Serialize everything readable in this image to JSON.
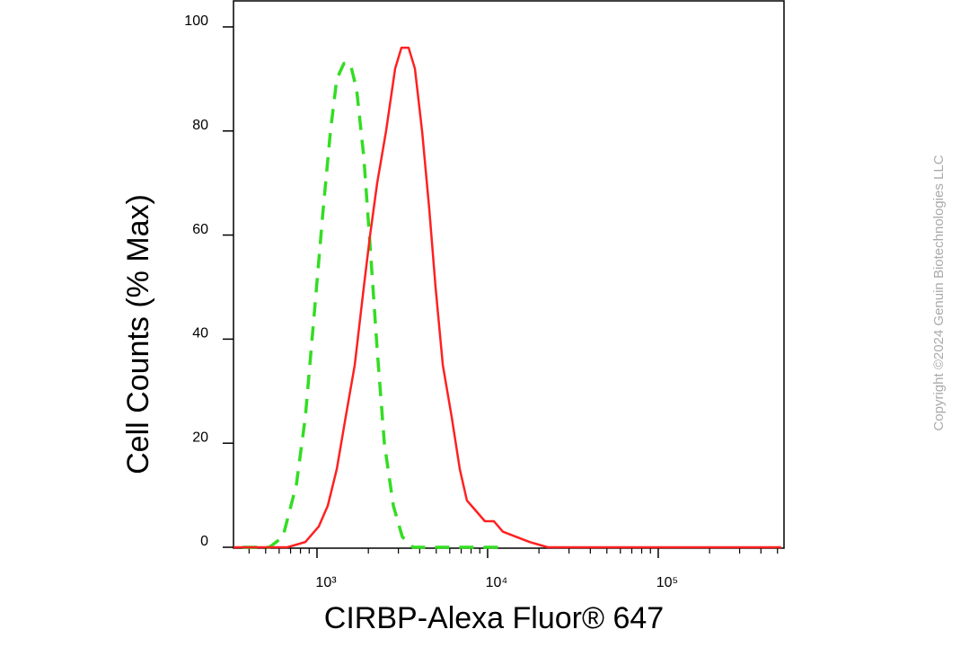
{
  "chart_data": {
    "type": "line",
    "x_label": "CIRBP-Alexa Fluor® 647",
    "y_label": "Cell Counts (% Max)",
    "copyright": "Copyright ©2024 Genuin Biotechnologies LLC",
    "xscale": "log",
    "xlim": [
      324,
      546000
    ],
    "ylim": [
      0,
      105
    ],
    "xticks": [
      {
        "value": 1000,
        "label": "10³"
      },
      {
        "value": 10000,
        "label": "10⁴"
      },
      {
        "value": 100000,
        "label": "10⁵"
      }
    ],
    "xticks_minor": [
      400,
      500,
      600,
      700,
      800,
      900,
      2000,
      3000,
      4000,
      5000,
      6000,
      7000,
      8000,
      9000,
      20000,
      30000,
      40000,
      50000,
      60000,
      70000,
      80000,
      90000,
      200000,
      300000,
      400000,
      500000
    ],
    "yticks": [
      0,
      20,
      40,
      60,
      80,
      100
    ],
    "series": [
      {
        "color": "#33dd22",
        "dash": true,
        "x": [
          366,
          526,
          631,
          757,
          854,
          964,
          1088,
          1200,
          1306,
          1438,
          1567,
          1706,
          1880,
          2046,
          2253,
          2482,
          2801,
          3162,
          3656,
          5943,
          12270
        ],
        "values": [
          0,
          0,
          2,
          12,
          25,
          45,
          65,
          80,
          90,
          93,
          93,
          88,
          75,
          58,
          38,
          20,
          8,
          2,
          0,
          0,
          0
        ]
      },
      {
        "color": "#ff2020",
        "dash": false,
        "x": [
          324,
          670,
          854,
          1025,
          1157,
          1306,
          1473,
          1664,
          1880,
          2046,
          2253,
          2541,
          2870,
          3126,
          3443,
          3749,
          4130,
          4551,
          4955,
          5461,
          6158,
          6869,
          7565,
          8550,
          9640,
          10890,
          12270,
          14730,
          17660,
          22530,
          526000
        ],
        "values": [
          0,
          0,
          1,
          4,
          8,
          15,
          25,
          35,
          50,
          60,
          70,
          80,
          92,
          96,
          96,
          92,
          80,
          65,
          50,
          35,
          25,
          15,
          9,
          7,
          5,
          5,
          3,
          2,
          1,
          0,
          0
        ]
      }
    ]
  }
}
